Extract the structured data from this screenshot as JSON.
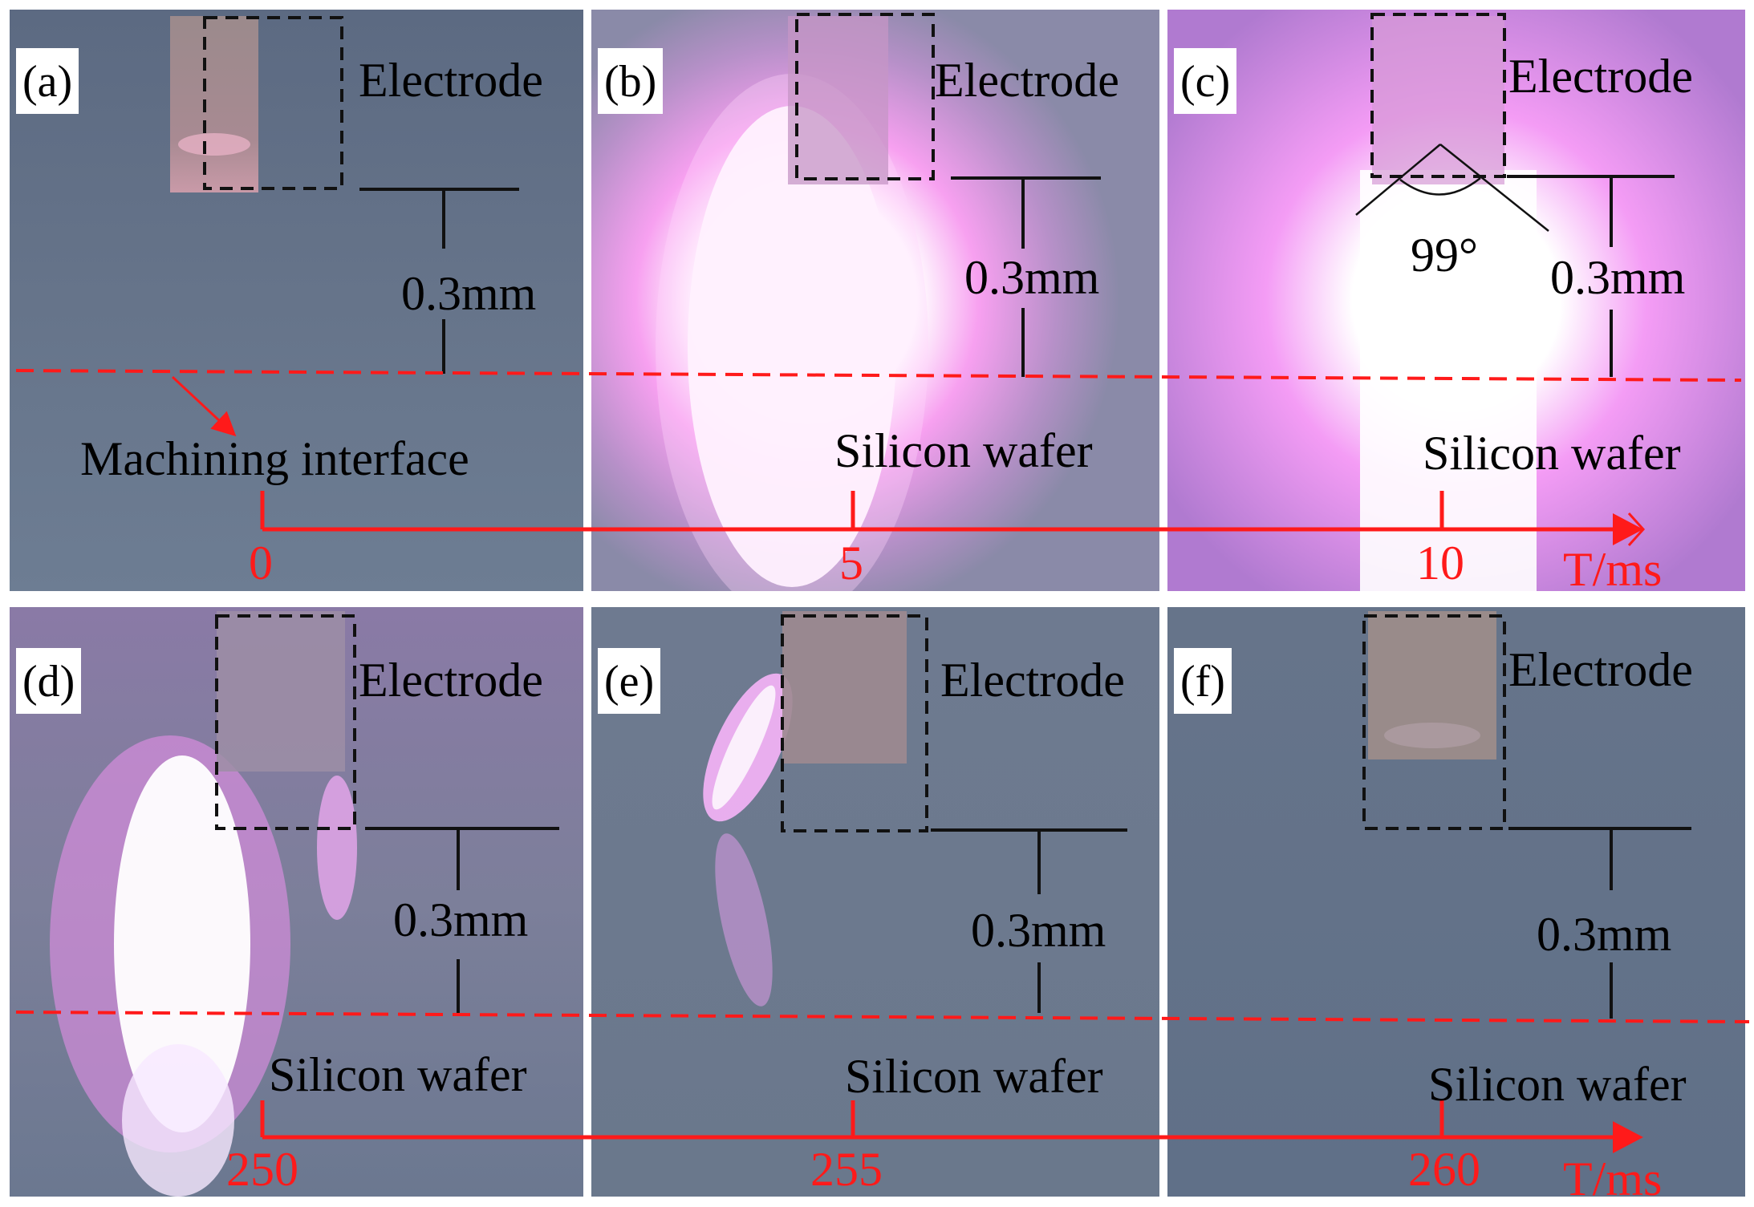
{
  "panels": [
    {
      "id": "a",
      "label": "(a)",
      "electrode": "Electrode",
      "gap": "0.3mm",
      "extra_label": "Machining interface"
    },
    {
      "id": "b",
      "label": "(b)",
      "electrode": "Electrode",
      "gap": "0.3mm",
      "wafer": "Silicon wafer"
    },
    {
      "id": "c",
      "label": "(c)",
      "electrode": "Electrode",
      "gap": "0.3mm",
      "wafer": "Silicon wafer",
      "angle": "99°"
    },
    {
      "id": "d",
      "label": "(d)",
      "electrode": "Electrode",
      "gap": "0.3mm",
      "wafer": "Silicon wafer"
    },
    {
      "id": "e",
      "label": "(e)",
      "electrode": "Electrode",
      "gap": "0.3mm",
      "wafer": "Silicon wafer"
    },
    {
      "id": "f",
      "label": "(f)",
      "electrode": "Electrode",
      "gap": "0.3mm",
      "wafer": "Silicon wafer"
    }
  ],
  "timeline_top": {
    "ticks": [
      "0",
      "5",
      "10"
    ],
    "axis_label": "T/ms"
  },
  "timeline_bottom": {
    "ticks": [
      "250",
      "255",
      "260"
    ],
    "axis_label": "T/ms"
  },
  "colors": {
    "annotation_red": "#ff1a1a",
    "background_gray": "#5f6f86",
    "plasma_pink": "#ff66ff"
  }
}
